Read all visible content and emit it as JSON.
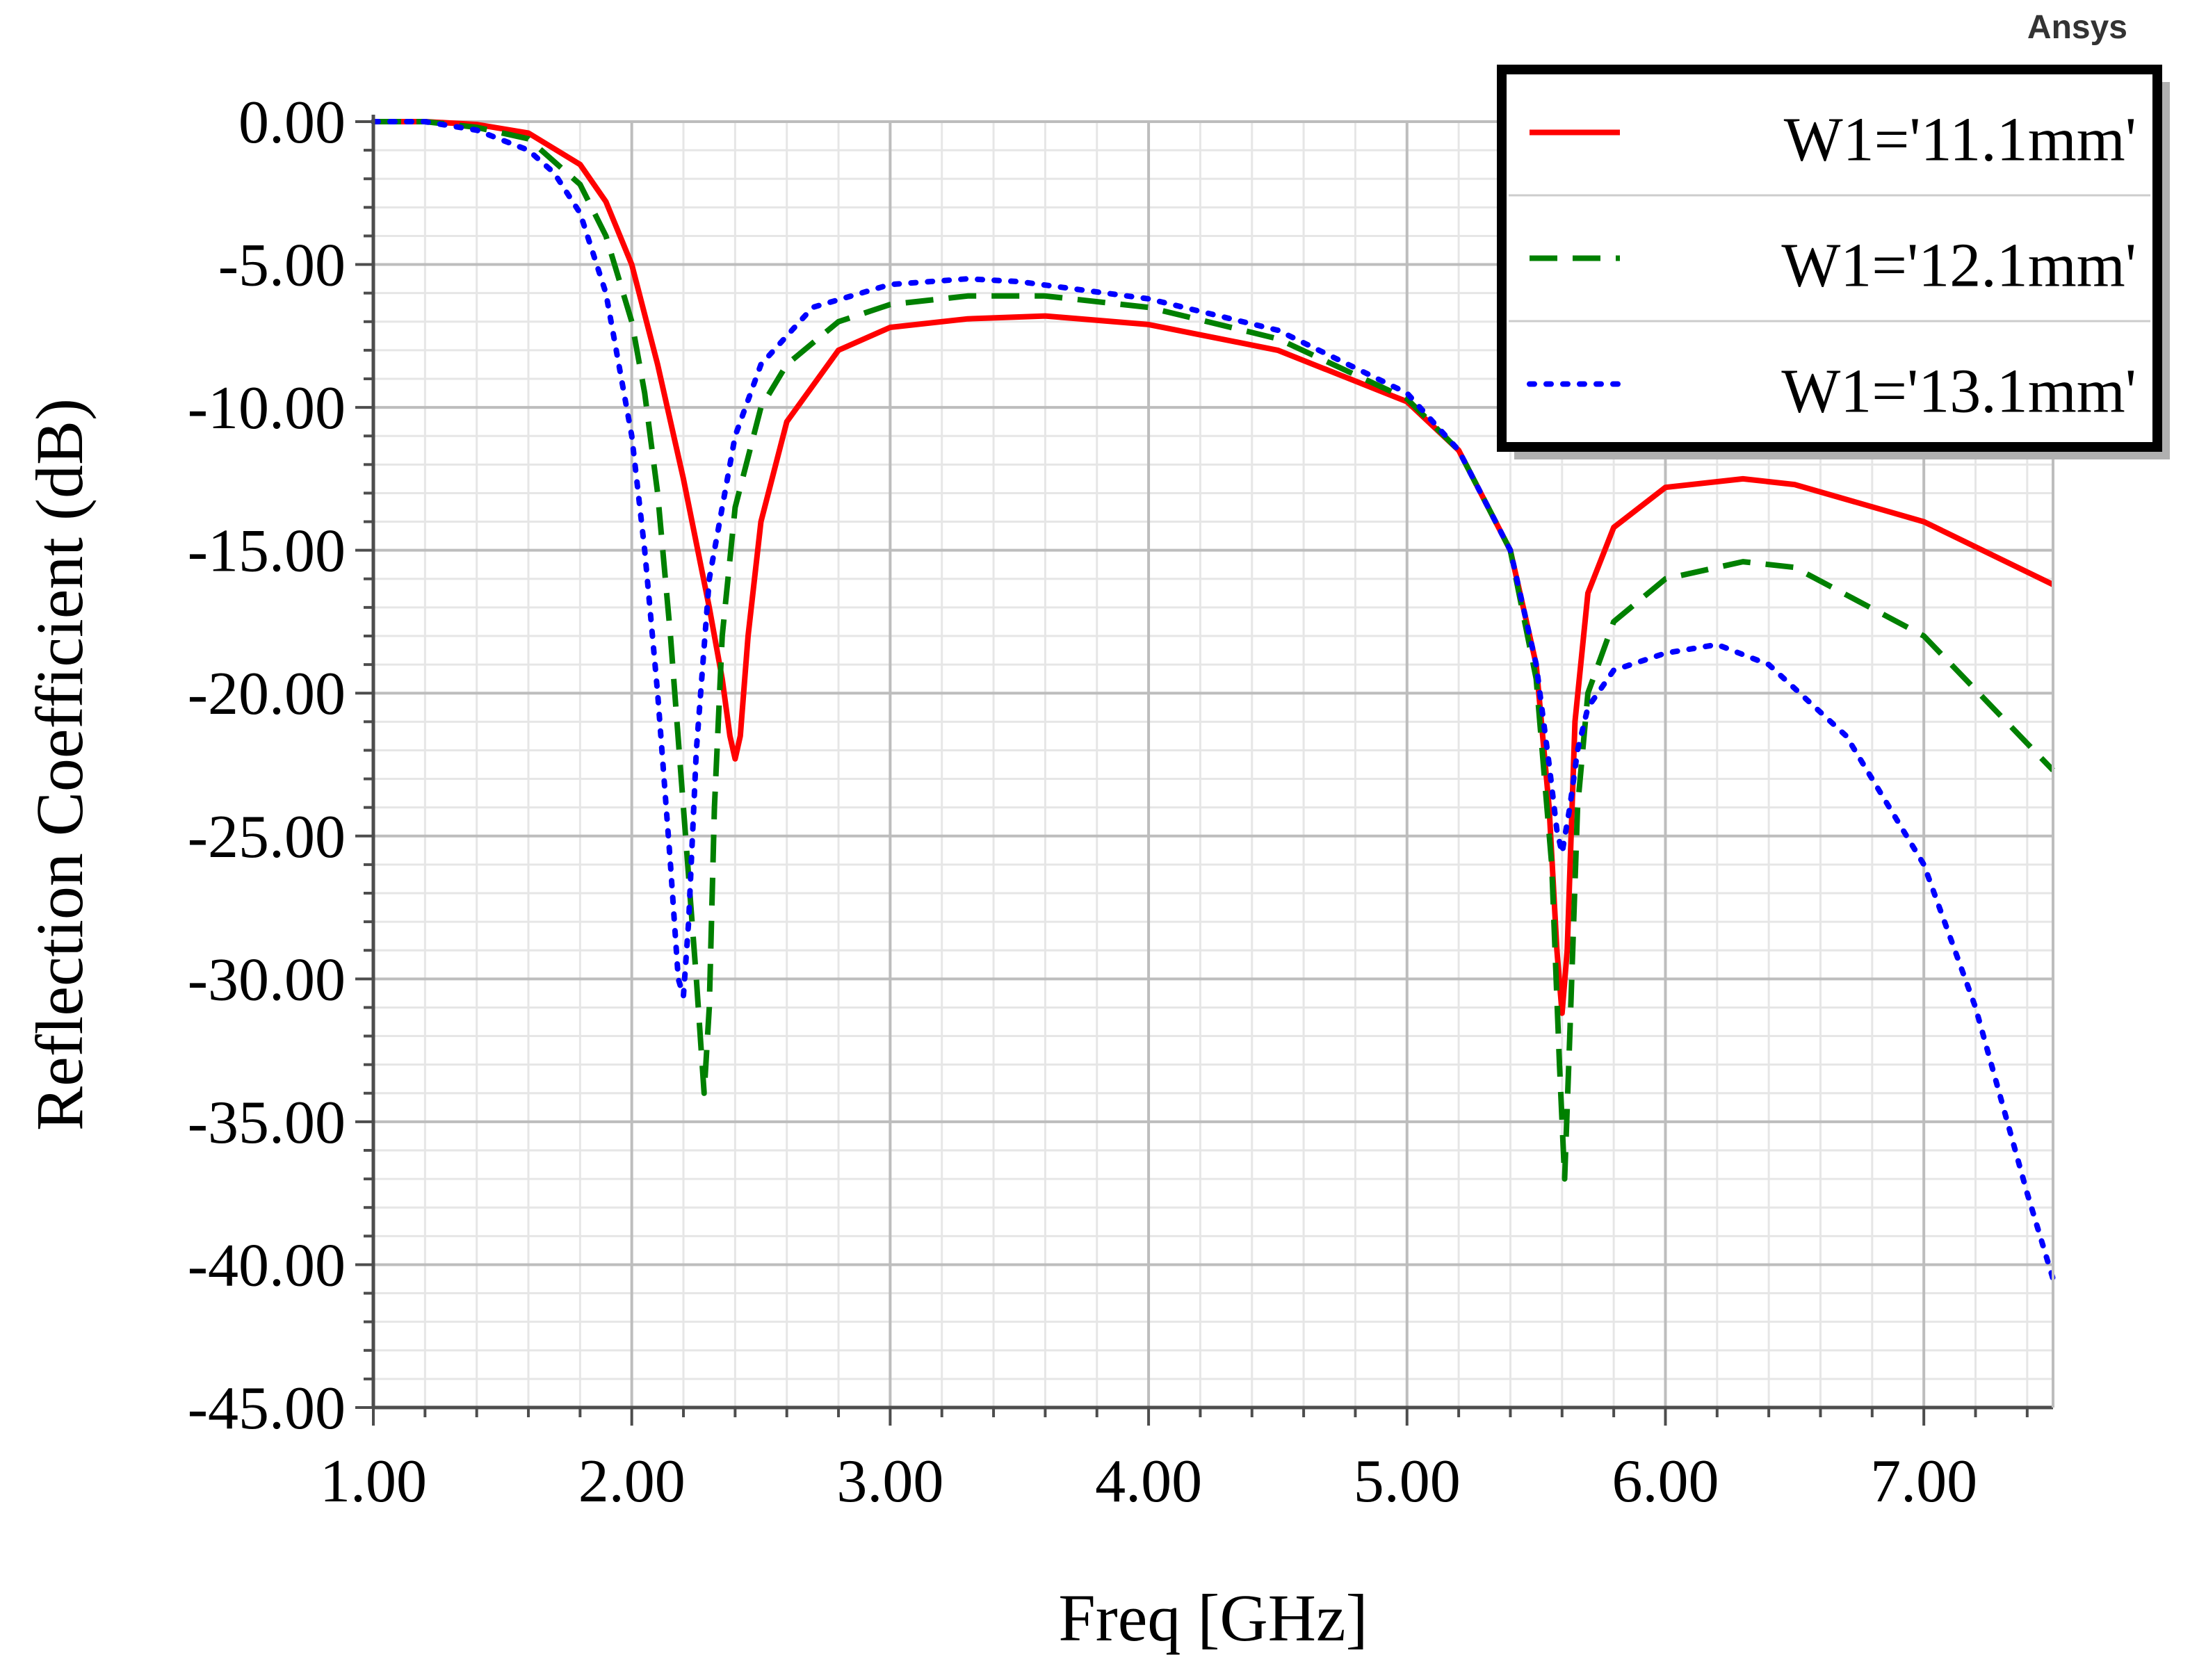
{
  "brand": "Ansys",
  "chart_data": {
    "type": "line",
    "title": "",
    "xlabel": "Freq [GHz]",
    "ylabel": "Reflection Coefficient (dB)",
    "xlim": [
      1.0,
      7.5
    ],
    "ylim": [
      -45.0,
      0.0
    ],
    "xticks": [
      1.0,
      2.0,
      3.0,
      4.0,
      5.0,
      6.0,
      7.0
    ],
    "xtick_labels": [
      "1.00",
      "2.00",
      "3.00",
      "4.00",
      "5.00",
      "6.00",
      "7.00"
    ],
    "yticks": [
      0,
      -5,
      -10,
      -15,
      -20,
      -25,
      -30,
      -35,
      -40,
      -45
    ],
    "ytick_labels": [
      "0.00",
      "-5.00",
      "-10.00",
      "-15.00",
      "-20.00",
      "-25.00",
      "-30.00",
      "-35.00",
      "-40.00",
      "-45.00"
    ],
    "grid": true,
    "legend_position": "top-right",
    "series": [
      {
        "name": "W1='11.1mm'",
        "color": "#ff0000",
        "dash": "solid",
        "x": [
          1.0,
          1.2,
          1.4,
          1.6,
          1.8,
          1.9,
          2.0,
          2.1,
          2.2,
          2.3,
          2.35,
          2.38,
          2.4,
          2.42,
          2.45,
          2.5,
          2.6,
          2.8,
          3.0,
          3.3,
          3.6,
          4.0,
          4.5,
          5.0,
          5.2,
          5.4,
          5.5,
          5.55,
          5.58,
          5.6,
          5.62,
          5.65,
          5.7,
          5.8,
          6.0,
          6.3,
          6.5,
          7.0,
          7.5
        ],
        "y": [
          0.0,
          0.0,
          -0.1,
          -0.4,
          -1.5,
          -2.8,
          -5.0,
          -8.5,
          -12.5,
          -17.0,
          -19.5,
          -21.5,
          -22.3,
          -21.5,
          -18.0,
          -14.0,
          -10.5,
          -8.0,
          -7.2,
          -6.9,
          -6.8,
          -7.1,
          -8.0,
          -9.8,
          -11.5,
          -15.0,
          -19.0,
          -24.0,
          -29.0,
          -31.2,
          -29.0,
          -21.0,
          -16.5,
          -14.2,
          -12.8,
          -12.5,
          -12.7,
          -14.0,
          -16.2
        ]
      },
      {
        "name": "W1='12.1mm'",
        "color": "#008000",
        "dash": "dashed",
        "x": [
          1.0,
          1.2,
          1.4,
          1.6,
          1.8,
          1.9,
          2.0,
          2.05,
          2.1,
          2.15,
          2.2,
          2.25,
          2.28,
          2.3,
          2.32,
          2.35,
          2.4,
          2.5,
          2.6,
          2.8,
          3.0,
          3.3,
          3.6,
          4.0,
          4.5,
          5.0,
          5.2,
          5.4,
          5.5,
          5.56,
          5.59,
          5.61,
          5.63,
          5.66,
          5.7,
          5.8,
          6.0,
          6.3,
          6.5,
          7.0,
          7.5
        ],
        "y": [
          0.0,
          0.0,
          -0.2,
          -0.6,
          -2.2,
          -4.0,
          -7.0,
          -9.5,
          -13.0,
          -18.0,
          -24.0,
          -30.0,
          -34.0,
          -31.0,
          -24.0,
          -18.0,
          -13.5,
          -10.0,
          -8.5,
          -7.0,
          -6.4,
          -6.1,
          -6.1,
          -6.5,
          -7.6,
          -9.7,
          -11.5,
          -15.0,
          -19.5,
          -26.0,
          -33.0,
          -37.0,
          -32.0,
          -24.0,
          -20.0,
          -17.5,
          -16.0,
          -15.4,
          -15.6,
          -18.0,
          -22.7
        ]
      },
      {
        "name": "W1='13.1mm'",
        "color": "#0000ff",
        "dash": "dotted",
        "x": [
          1.0,
          1.2,
          1.4,
          1.6,
          1.7,
          1.8,
          1.9,
          2.0,
          2.05,
          2.1,
          2.15,
          2.18,
          2.2,
          2.22,
          2.25,
          2.3,
          2.4,
          2.5,
          2.7,
          3.0,
          3.3,
          3.5,
          4.0,
          4.5,
          5.0,
          5.2,
          5.4,
          5.5,
          5.55,
          5.58,
          5.6,
          5.63,
          5.66,
          5.7,
          5.8,
          6.0,
          6.2,
          6.4,
          6.7,
          7.0,
          7.2,
          7.4,
          7.5
        ],
        "y": [
          0.0,
          0.0,
          -0.3,
          -1.0,
          -1.8,
          -3.2,
          -6.0,
          -11.0,
          -15.0,
          -20.0,
          -26.0,
          -30.0,
          -30.6,
          -28.0,
          -22.0,
          -16.0,
          -11.0,
          -8.5,
          -6.5,
          -5.7,
          -5.5,
          -5.6,
          -6.2,
          -7.3,
          -9.5,
          -11.5,
          -15.0,
          -19.0,
          -22.5,
          -24.8,
          -25.6,
          -24.0,
          -22.0,
          -20.5,
          -19.2,
          -18.6,
          -18.3,
          -19.0,
          -21.5,
          -26.0,
          -31.0,
          -37.5,
          -40.5
        ]
      }
    ]
  }
}
